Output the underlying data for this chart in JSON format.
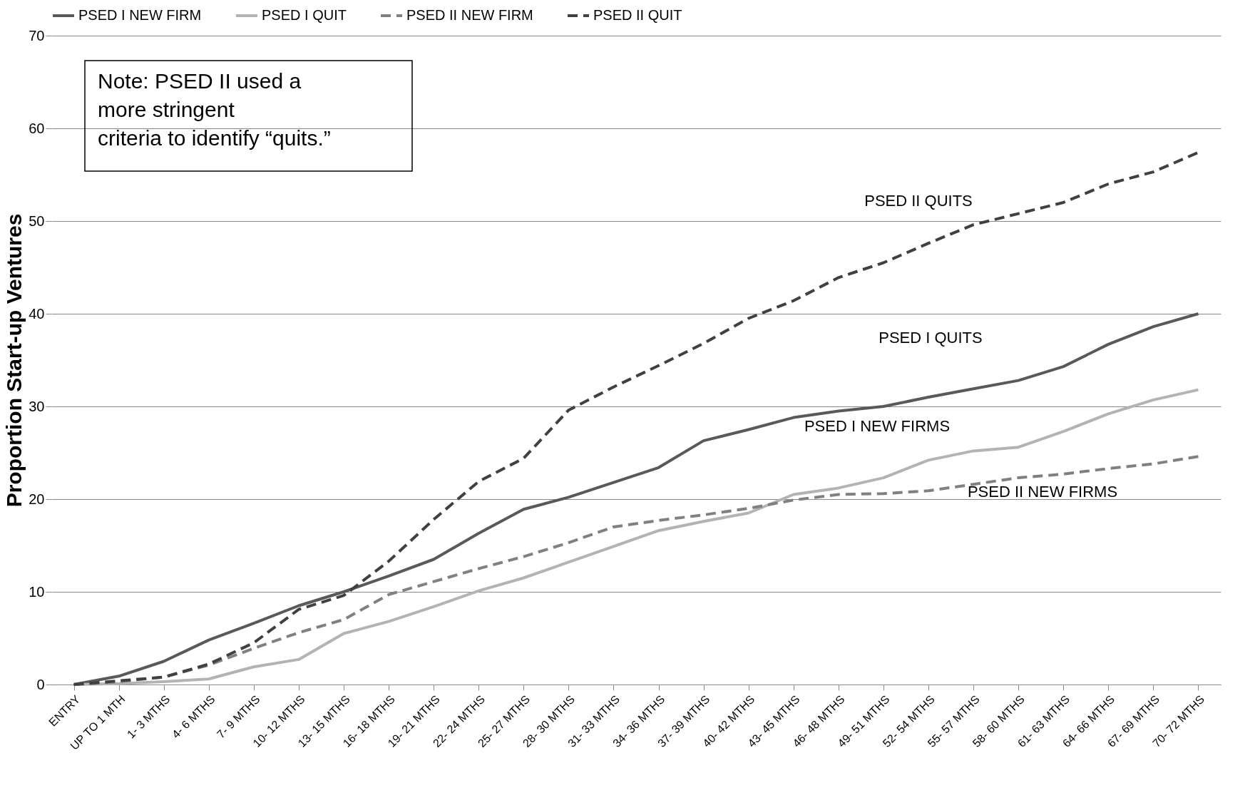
{
  "chart_data": {
    "type": "line",
    "ylabel": "Proportion Start-up Ventures",
    "categories": [
      "ENTRY",
      "UP TO 1 MTH",
      "1- 3 MTHS",
      "4- 6 MTHS",
      "7- 9 MTHS",
      "10- 12 MTHS",
      "13- 15 MTHS",
      "16- 18 MTHS",
      "19- 21 MTHS",
      "22- 24 MTHS",
      "25- 27 MTHS",
      "28- 30 MTHS",
      "31- 33 MTHS",
      "34- 36 MTHS",
      "37- 39 MTHS",
      "40- 42 MTHS",
      "43- 45 MTHS",
      "46- 48 MTHS",
      "49- 51 MTHS",
      "52- 54 MTHS",
      "55- 57 MTHS",
      "58- 60 MTHS",
      "61- 63 MTHS",
      "64- 66 MTHS",
      "67- 69 MTHS",
      "70- 72 MTHS"
    ],
    "series": [
      {
        "name": "PSED I NEW FIRM",
        "color": "#595959",
        "line_style": "solid",
        "values": [
          0,
          0.9,
          2.5,
          4.8,
          6.6,
          8.5,
          10.0,
          11.7,
          13.5,
          16.3,
          18.9,
          20.2,
          21.8,
          23.4,
          26.3,
          27.5,
          28.8,
          29.5,
          30.0,
          31.0,
          31.9,
          32.8,
          34.3,
          36.7,
          38.6,
          40.0
        ]
      },
      {
        "name": "PSED I QUIT",
        "color": "#b3b3b3",
        "line_style": "solid",
        "values": [
          0,
          0.1,
          0.3,
          0.6,
          1.9,
          2.7,
          5.5,
          6.8,
          8.4,
          10.1,
          11.5,
          13.2,
          14.9,
          16.6,
          17.6,
          18.5,
          20.5,
          21.2,
          22.3,
          24.2,
          25.2,
          25.6,
          27.3,
          29.2,
          30.7,
          31.8
        ]
      },
      {
        "name": "PSED II NEW FIRM",
        "color": "#808080",
        "line_style": "dashed",
        "values": [
          0,
          0.3,
          0.8,
          2.1,
          3.9,
          5.6,
          7.0,
          9.7,
          11.1,
          12.5,
          13.8,
          15.3,
          17.0,
          17.7,
          18.3,
          19.0,
          19.9,
          20.5,
          20.6,
          20.9,
          21.6,
          22.3,
          22.7,
          23.3,
          23.8,
          24.6
        ]
      },
      {
        "name": "PSED II QUIT",
        "color": "#404040",
        "line_style": "dashed",
        "values": [
          0,
          0.4,
          0.8,
          2.2,
          4.5,
          8.1,
          9.6,
          13.3,
          17.8,
          21.9,
          24.4,
          29.6,
          32.1,
          34.4,
          36.8,
          39.5,
          41.4,
          43.9,
          45.5,
          47.6,
          49.6,
          50.8,
          52.0,
          54.0,
          55.3,
          57.4
        ]
      }
    ],
    "ylim": [
      0,
      70
    ],
    "yticks": [
      0,
      10,
      20,
      30,
      40,
      50,
      60,
      70
    ],
    "grid": "y",
    "legend": "top",
    "marker": "none",
    "annotations": [
      "Note: PSED II used a\nmore stringent\ncriteria to identify “quits.”",
      "PSED II QUITS",
      "PSED I QUITS",
      "PSED I NEW FIRMS",
      "PSED II NEW FIRMS"
    ]
  }
}
